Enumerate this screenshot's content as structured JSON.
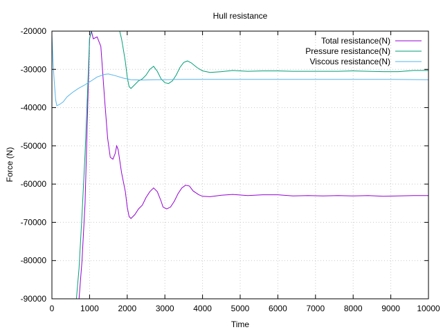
{
  "chart_data": {
    "type": "line",
    "title": "Hull resistance",
    "xlabel": "Time",
    "ylabel": "Force (N)",
    "xlim": [
      0,
      10000
    ],
    "ylim": [
      -90000,
      -20000
    ],
    "xticks": [
      0,
      1000,
      2000,
      3000,
      4000,
      5000,
      6000,
      7000,
      8000,
      9000,
      10000
    ],
    "yticks": [
      -90000,
      -80000,
      -70000,
      -60000,
      -50000,
      -40000,
      -30000,
      -20000
    ],
    "xtick_labels": [
      "0",
      "1000",
      "2000",
      "3000",
      "4000",
      "5000",
      "6000",
      "7000",
      "8000",
      "9000",
      "10000"
    ],
    "ytick_labels": [
      "-90000",
      "-80000",
      "-70000",
      "-60000",
      "-50000",
      "-40000",
      "-30000",
      "-20000"
    ],
    "grid": true,
    "legend_position": "top-right",
    "series": [
      {
        "name": "Total resistance(N)",
        "color": "#9400d3",
        "points": [
          [
            720,
            -90000
          ],
          [
            800,
            -80000
          ],
          [
            880,
            -65000
          ],
          [
            950,
            -40000
          ],
          [
            1000,
            -22000
          ],
          [
            1050,
            -20000
          ],
          [
            1100,
            -22000
          ],
          [
            1200,
            -21500
          ],
          [
            1300,
            -24000
          ],
          [
            1400,
            -38000
          ],
          [
            1480,
            -48000
          ],
          [
            1550,
            -53000
          ],
          [
            1620,
            -53500
          ],
          [
            1680,
            -52000
          ],
          [
            1720,
            -50000
          ],
          [
            1760,
            -51000
          ],
          [
            1850,
            -57000
          ],
          [
            1950,
            -62000
          ],
          [
            2000,
            -66000
          ],
          [
            2050,
            -68500
          ],
          [
            2100,
            -69000
          ],
          [
            2200,
            -68000
          ],
          [
            2300,
            -66500
          ],
          [
            2400,
            -65500
          ],
          [
            2500,
            -63500
          ],
          [
            2600,
            -62000
          ],
          [
            2700,
            -61000
          ],
          [
            2800,
            -62000
          ],
          [
            2900,
            -64500
          ],
          [
            2950,
            -66000
          ],
          [
            3050,
            -66500
          ],
          [
            3150,
            -66000
          ],
          [
            3250,
            -64500
          ],
          [
            3350,
            -62500
          ],
          [
            3450,
            -61000
          ],
          [
            3550,
            -60300
          ],
          [
            3650,
            -60500
          ],
          [
            3750,
            -61800
          ],
          [
            3900,
            -62800
          ],
          [
            4000,
            -63200
          ],
          [
            4200,
            -63300
          ],
          [
            4500,
            -62900
          ],
          [
            4800,
            -62700
          ],
          [
            5200,
            -63000
          ],
          [
            5600,
            -62800
          ],
          [
            6000,
            -62800
          ],
          [
            6400,
            -63100
          ],
          [
            6800,
            -63000
          ],
          [
            7200,
            -63100
          ],
          [
            7600,
            -63000
          ],
          [
            8000,
            -63100
          ],
          [
            8400,
            -63000
          ],
          [
            8800,
            -63200
          ],
          [
            9200,
            -63100
          ],
          [
            9600,
            -63000
          ],
          [
            10000,
            -63000
          ]
        ]
      },
      {
        "name": "Pressure resistance(N)",
        "color": "#009e73",
        "points": [
          [
            650,
            -90000
          ],
          [
            720,
            -82000
          ],
          [
            800,
            -68000
          ],
          [
            880,
            -52000
          ],
          [
            950,
            -35000
          ],
          [
            1000,
            -22000
          ],
          [
            1050,
            -20000
          ],
          [
            1700,
            -20000
          ],
          [
            1800,
            -20000
          ],
          [
            1850,
            -22000
          ],
          [
            1900,
            -25000
          ],
          [
            1950,
            -28000
          ],
          [
            2000,
            -32000
          ],
          [
            2050,
            -34500
          ],
          [
            2100,
            -35000
          ],
          [
            2200,
            -34000
          ],
          [
            2300,
            -33000
          ],
          [
            2400,
            -32500
          ],
          [
            2500,
            -31500
          ],
          [
            2600,
            -30000
          ],
          [
            2700,
            -29200
          ],
          [
            2800,
            -30500
          ],
          [
            2900,
            -32500
          ],
          [
            3000,
            -33500
          ],
          [
            3100,
            -33700
          ],
          [
            3200,
            -33000
          ],
          [
            3300,
            -31500
          ],
          [
            3400,
            -29500
          ],
          [
            3500,
            -28200
          ],
          [
            3600,
            -27800
          ],
          [
            3700,
            -28300
          ],
          [
            3850,
            -29500
          ],
          [
            4000,
            -30400
          ],
          [
            4200,
            -30800
          ],
          [
            4500,
            -30600
          ],
          [
            4800,
            -30300
          ],
          [
            5200,
            -30500
          ],
          [
            5600,
            -30400
          ],
          [
            6000,
            -30400
          ],
          [
            6400,
            -30500
          ],
          [
            6800,
            -30500
          ],
          [
            7200,
            -30500
          ],
          [
            7600,
            -30500
          ],
          [
            8000,
            -30400
          ],
          [
            8400,
            -30500
          ],
          [
            8800,
            -30600
          ],
          [
            9200,
            -30600
          ],
          [
            9600,
            -30300
          ],
          [
            10000,
            -30300
          ]
        ]
      },
      {
        "name": "Viscous resistance(N)",
        "color": "#56b4e9",
        "points": [
          [
            0,
            -21000
          ],
          [
            30,
            -28000
          ],
          [
            60,
            -33000
          ],
          [
            100,
            -38000
          ],
          [
            130,
            -39500
          ],
          [
            200,
            -39200
          ],
          [
            300,
            -38500
          ],
          [
            400,
            -37200
          ],
          [
            550,
            -36000
          ],
          [
            700,
            -35000
          ],
          [
            850,
            -34200
          ],
          [
            1000,
            -33300
          ],
          [
            1200,
            -32000
          ],
          [
            1400,
            -31300
          ],
          [
            1500,
            -31200
          ],
          [
            1700,
            -31700
          ],
          [
            1900,
            -32300
          ],
          [
            2100,
            -32700
          ],
          [
            2400,
            -32800
          ],
          [
            2700,
            -32700
          ],
          [
            3000,
            -32700
          ],
          [
            3500,
            -32600
          ],
          [
            4000,
            -32600
          ],
          [
            5000,
            -32600
          ],
          [
            6000,
            -32600
          ],
          [
            7000,
            -32600
          ],
          [
            8000,
            -32600
          ],
          [
            9000,
            -32600
          ],
          [
            10000,
            -32700
          ]
        ]
      }
    ]
  }
}
